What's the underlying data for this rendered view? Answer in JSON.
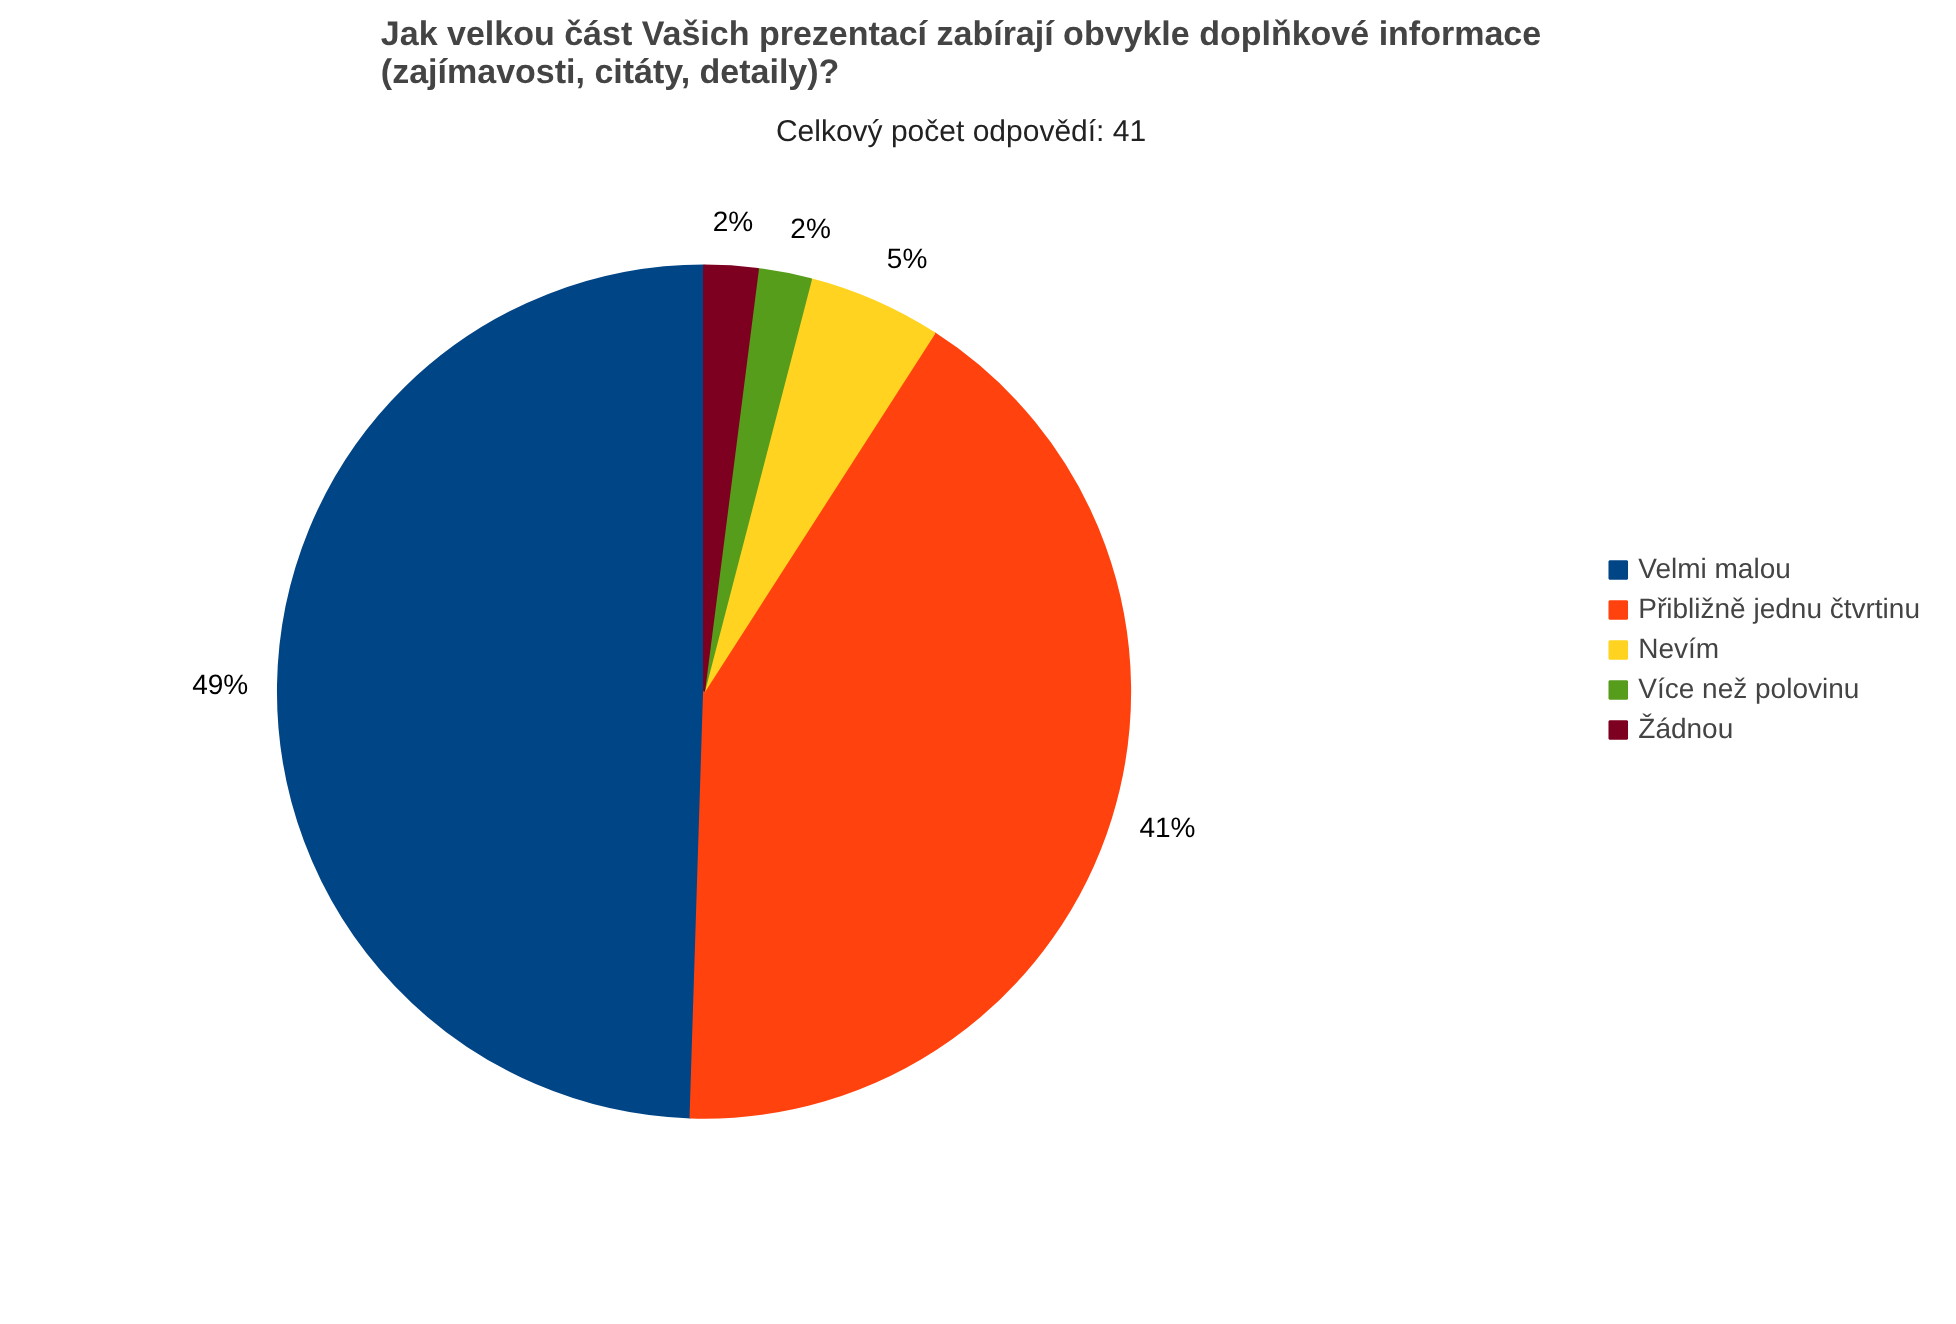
{
  "chart_data": {
    "type": "pie",
    "title": "Jak velkou část Vašich prezentací zabírají obvykle doplňkové informace (zajímavosti, citáty, detaily)?",
    "subtitle": "Celkový počet odpovědí: 41",
    "categories": [
      "Velmi malou",
      "Přibližně jednu čtvrtinu",
      "Nevím",
      "Více než polovinu",
      "Žádnou"
    ],
    "values": [
      49,
      41,
      5,
      2,
      2
    ],
    "value_labels": [
      "49%",
      "41%",
      "5%",
      "2%",
      "2%"
    ],
    "colors": [
      "#004586",
      "#ff420e",
      "#ffd320",
      "#579d1c",
      "#7e0021"
    ],
    "legend": "right"
  }
}
